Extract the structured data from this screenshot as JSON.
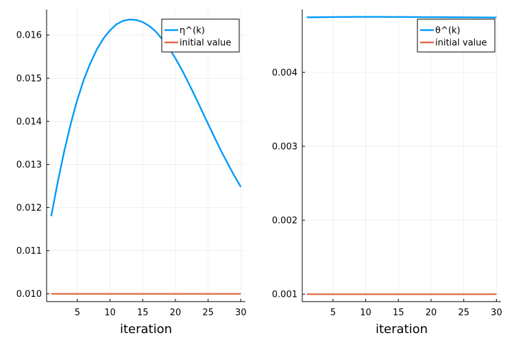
{
  "chart_data": [
    {
      "type": "line",
      "xlabel": "iteration",
      "ylabel": "",
      "xlim": [
        0.3,
        30.7
      ],
      "ylim": [
        0.00982,
        0.01659
      ],
      "xticks": [
        5,
        10,
        15,
        20,
        25,
        30
      ],
      "xtick_labels": [
        "5",
        "10",
        "15",
        "20",
        "25",
        "30"
      ],
      "yticks": [
        0.01,
        0.011,
        0.012,
        0.013,
        0.014,
        0.015,
        0.016
      ],
      "ytick_labels": [
        "0.010",
        "0.011",
        "0.012",
        "0.013",
        "0.014",
        "0.015",
        "0.016"
      ],
      "grid": true,
      "legend_position": "top-right",
      "x": [
        1,
        2,
        3,
        4,
        5,
        6,
        7,
        8,
        9,
        10,
        11,
        12,
        13,
        14,
        15,
        16,
        17,
        18,
        19,
        20,
        21,
        22,
        23,
        24,
        25,
        26,
        27,
        28,
        29,
        30
      ],
      "series": [
        {
          "name": "η^(k)",
          "color": "#009af9",
          "values": [
            0.0118,
            0.01259,
            0.01331,
            0.01395,
            0.0145,
            0.01497,
            0.01535,
            0.01567,
            0.01592,
            0.01611,
            0.01625,
            0.01633,
            0.01636,
            0.01635,
            0.0163,
            0.01621,
            0.01608,
            0.0159,
            0.0157,
            0.01546,
            0.01519,
            0.01489,
            0.01458,
            0.01426,
            0.01394,
            0.01362,
            0.01331,
            0.01302,
            0.01274,
            0.01248
          ]
        },
        {
          "name": "initial value",
          "color": "#e26f46",
          "values": [
            0.01,
            0.01,
            0.01,
            0.01,
            0.01,
            0.01,
            0.01,
            0.01,
            0.01,
            0.01,
            0.01,
            0.01,
            0.01,
            0.01,
            0.01,
            0.01,
            0.01,
            0.01,
            0.01,
            0.01,
            0.01,
            0.01,
            0.01,
            0.01,
            0.01,
            0.01,
            0.01,
            0.01,
            0.01,
            0.01
          ]
        }
      ]
    },
    {
      "type": "line",
      "xlabel": "iteration",
      "ylabel": "",
      "xlim": [
        0.3,
        30.7
      ],
      "ylim": [
        0.0009,
        0.00485
      ],
      "xticks": [
        5,
        10,
        15,
        20,
        25,
        30
      ],
      "xtick_labels": [
        "5",
        "10",
        "15",
        "20",
        "25",
        "30"
      ],
      "yticks": [
        0.001,
        0.002,
        0.003,
        0.004
      ],
      "ytick_labels": [
        "0.001",
        "0.002",
        "0.003",
        "0.004"
      ],
      "grid": true,
      "legend_position": "top-right",
      "x": [
        1,
        2,
        3,
        4,
        5,
        6,
        7,
        8,
        9,
        10,
        11,
        12,
        13,
        14,
        15,
        16,
        17,
        18,
        19,
        20,
        21,
        22,
        23,
        24,
        25,
        26,
        27,
        28,
        29,
        30
      ],
      "series": [
        {
          "name": "θ^(k)",
          "color": "#009af9",
          "values": [
            0.004745,
            0.004746,
            0.004747,
            0.004748,
            0.004749,
            0.00475,
            0.00475,
            0.004751,
            0.004751,
            0.004751,
            0.004751,
            0.004751,
            0.004751,
            0.00475,
            0.00475,
            0.00475,
            0.004749,
            0.004749,
            0.004748,
            0.004748,
            0.004747,
            0.004747,
            0.004746,
            0.004746,
            0.004745,
            0.004745,
            0.004744,
            0.004744,
            0.004743,
            0.004743
          ]
        },
        {
          "name": "initial value",
          "color": "#e26f46",
          "values": [
            0.001,
            0.001,
            0.001,
            0.001,
            0.001,
            0.001,
            0.001,
            0.001,
            0.001,
            0.001,
            0.001,
            0.001,
            0.001,
            0.001,
            0.001,
            0.001,
            0.001,
            0.001,
            0.001,
            0.001,
            0.001,
            0.001,
            0.001,
            0.001,
            0.001,
            0.001,
            0.001,
            0.001,
            0.001,
            0.001
          ]
        }
      ]
    }
  ]
}
